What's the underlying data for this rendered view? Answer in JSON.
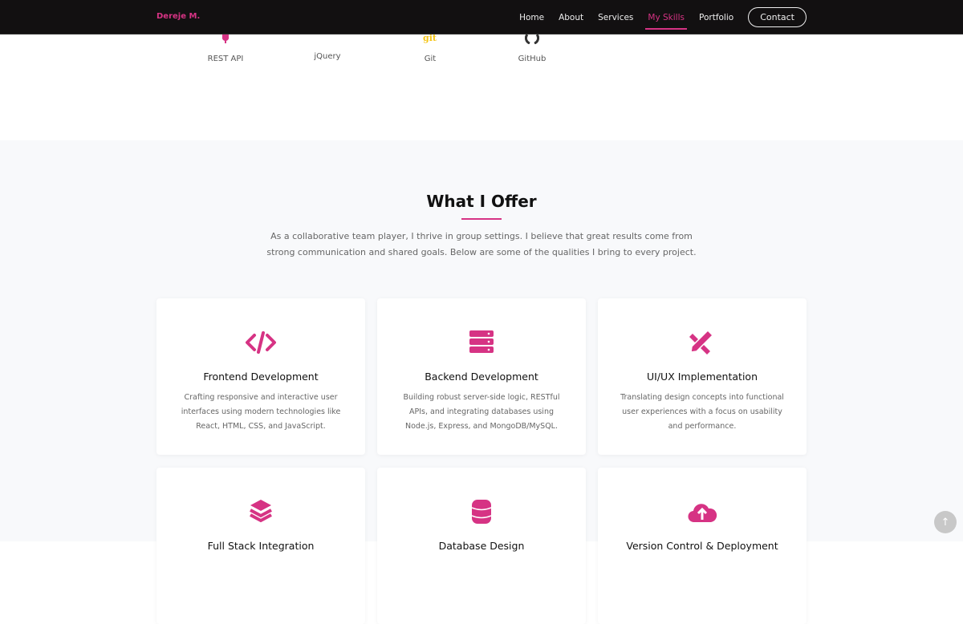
{
  "nav": {
    "logo": "Dereje M.",
    "links": [
      "Home",
      "About",
      "Services",
      "My Skills",
      "Portfolio"
    ],
    "active": "My Skills",
    "contact": "Contact"
  },
  "skills": [
    {
      "label": "REST API",
      "icon": "map-pin-icon"
    },
    {
      "label": "jQuery",
      "icon": "jquery-icon"
    },
    {
      "label": "Git",
      "icon": "git-icon"
    },
    {
      "label": "GitHub",
      "icon": "github-icon"
    }
  ],
  "offer": {
    "title": "What I Offer",
    "intro": "As a collaborative team player, I thrive in group settings. I believe that great results come from strong communication and shared goals. Below are some of the qualities I bring to every project.",
    "cards": [
      {
        "title": "Frontend Development",
        "desc": "Crafting responsive and interactive user interfaces using modern technologies like React, HTML, CSS, and JavaScript.",
        "icon": "code-icon"
      },
      {
        "title": "Backend Development",
        "desc": "Building robust server-side logic, RESTful APIs, and integrating databases using Node.js, Express, and MongoDB/MySQL.",
        "icon": "server-icon"
      },
      {
        "title": "UI/UX Implementation",
        "desc": "Translating design concepts into functional user experiences with a focus on usability and performance.",
        "icon": "pencil-ruler-icon"
      },
      {
        "title": "Full Stack Integration",
        "desc": "",
        "icon": "layers-icon"
      },
      {
        "title": "Database Design",
        "desc": "",
        "icon": "database-icon"
      },
      {
        "title": "Version Control & Deployment",
        "desc": "",
        "icon": "cloud-upload-icon"
      }
    ]
  },
  "colors": {
    "accent": "#d63384",
    "nav_bg": "#121011",
    "section_bg": "#f8f9fb"
  }
}
